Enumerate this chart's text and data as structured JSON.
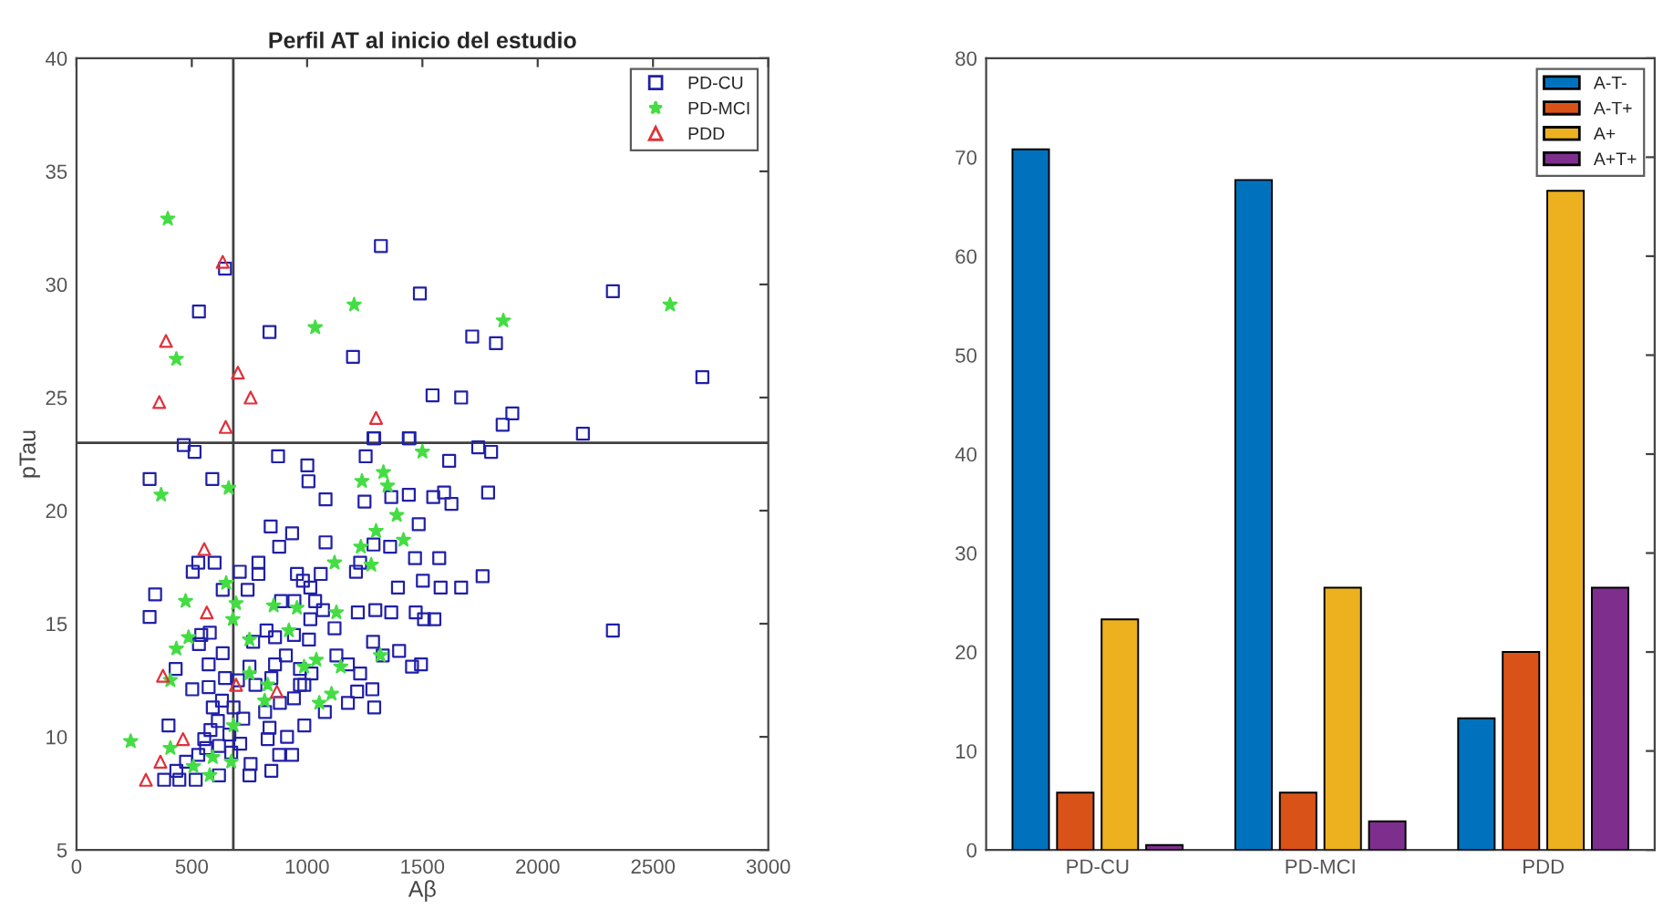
{
  "chart_data": [
    {
      "type": "scatter",
      "title": "Perfil AT al inicio del estudio",
      "xlabel": "Aβ",
      "ylabel": "pTau",
      "xlim": [
        0,
        3000
      ],
      "xticks": [
        0,
        500,
        1000,
        1500,
        2000,
        2500,
        3000
      ],
      "ylim": [
        5,
        40
      ],
      "yticks": [
        5,
        10,
        15,
        20,
        25,
        30,
        35,
        40
      ],
      "grid": false,
      "legend": "top right",
      "ref_lines": [
        {
          "axis": "x",
          "value": 680,
          "color": "#404040"
        },
        {
          "axis": "y",
          "value": 23,
          "color": "#404040"
        }
      ],
      "series": [
        {
          "name": "PD-CU",
          "color": "#2020a8",
          "marker": "square",
          "x": [
            1320,
            644,
            531,
            837,
            1489,
            1199,
            2326,
            1716,
            1819,
            2714,
            1544,
            1668,
            1890,
            1848,
            2196,
            1291,
            1441,
            465,
            512,
            589,
            317,
            874,
            1001,
            1006,
            1080,
            1254,
            1288,
            1444,
            1616,
            1798,
            1742,
            1249,
            1365,
            1441,
            1547,
            1594,
            1626,
            1785,
            1484,
            842,
            935,
            879,
            1080,
            1288,
            1360,
            1230,
            1468,
            1573,
            1761,
            1668,
            1579,
            1502,
            1394,
            1212,
            1059,
            956,
            789,
            742,
            708,
            789,
            528,
            504,
            599,
            634,
            341,
            317,
            541,
            578,
            531,
            766,
            824,
            861,
            943,
            1014,
            1069,
            1119,
            1220,
            1296,
            1365,
            1471,
            1507,
            1552,
            1399,
            1286,
            1328,
            1455,
            1494,
            1127,
            1177,
            1230,
            1283,
            1217,
            1291,
            1177,
            1077,
            988,
            913,
            935,
            879,
            845,
            829,
            837,
            755,
            750,
            618,
            517,
            446,
            380,
            433,
            475,
            528,
            562,
            581,
            399,
            430,
            502,
            573,
            573,
            634,
            644,
            700,
            750,
            776,
            845,
            861,
            908,
            969,
            988,
            943,
            882,
            818,
            723,
            681,
            631,
            591,
            613,
            663,
            710,
            671,
            618,
            554,
            969,
            1019,
            1008,
            1035,
            982,
            1014,
            945,
            887,
            2326
          ],
          "values": [
            31.7,
            30.7,
            28.8,
            27.9,
            29.6,
            26.8,
            29.7,
            27.7,
            27.4,
            25.9,
            25.1,
            25.0,
            24.3,
            23.8,
            23.4,
            23.2,
            23.2,
            22.9,
            22.6,
            21.4,
            21.4,
            22.4,
            22.0,
            21.3,
            20.5,
            22.4,
            23.2,
            23.2,
            22.2,
            22.6,
            22.8,
            20.4,
            20.6,
            20.7,
            20.6,
            20.8,
            20.3,
            20.8,
            19.4,
            19.3,
            19.0,
            18.4,
            18.6,
            18.5,
            18.4,
            17.7,
            17.9,
            17.9,
            17.1,
            16.6,
            16.6,
            16.9,
            16.6,
            17.3,
            17.2,
            17.2,
            17.2,
            16.5,
            17.3,
            17.7,
            17.7,
            17.3,
            17.7,
            16.5,
            16.3,
            15.3,
            14.5,
            14.6,
            14.1,
            14.2,
            14.7,
            14.4,
            14.5,
            15.2,
            15.6,
            14.8,
            15.5,
            15.6,
            15.5,
            15.5,
            15.2,
            15.2,
            13.8,
            14.2,
            13.6,
            13.1,
            13.2,
            13.6,
            13.2,
            12.8,
            12.1,
            12.0,
            11.3,
            11.5,
            11.1,
            10.5,
            10.0,
            9.2,
            9.2,
            8.5,
            9.9,
            10.4,
            8.8,
            8.3,
            8.3,
            8.1,
            8.1,
            8.1,
            8.5,
            8.9,
            9.2,
            9.5,
            10.3,
            10.5,
            13.0,
            12.1,
            12.2,
            13.2,
            13.7,
            12.6,
            12.5,
            13.1,
            12.3,
            12.6,
            13.2,
            13.6,
            13.0,
            12.3,
            11.7,
            11.5,
            11.1,
            10.8,
            11.3,
            11.6,
            11.3,
            10.7,
            10.1,
            9.7,
            9.3,
            9.6,
            9.9,
            12.3,
            12.8,
            14.3,
            16.0,
            16.9,
            16.6,
            16.0,
            16.0,
            14.7
          ]
        },
        {
          "name": "PD-MCI",
          "color": "#44dd44",
          "marker": "star",
          "x": [
            396,
            433,
            1035,
            1204,
            1851,
            2574,
            1500,
            367,
            660,
            1238,
            1331,
            1349,
            1299,
            1389,
            1418,
            1233,
            1119,
            1278,
            473,
            649,
            692,
            855,
            956,
            1127,
            678,
            486,
            433,
            750,
            921,
            1040,
            1146,
            1318,
            750,
            829,
            987,
            1106,
            816,
            1053,
            407,
            407,
            235,
            591,
            578,
            681,
            671,
            507
          ],
          "values": [
            32.9,
            26.7,
            28.1,
            29.1,
            28.4,
            29.1,
            22.6,
            20.7,
            21.0,
            21.3,
            21.7,
            21.1,
            19.1,
            19.8,
            18.7,
            18.4,
            17.7,
            17.6,
            16.0,
            16.8,
            15.9,
            15.8,
            15.7,
            15.5,
            15.2,
            14.4,
            13.9,
            14.3,
            14.7,
            13.4,
            13.1,
            13.6,
            12.8,
            12.3,
            13.1,
            11.9,
            11.6,
            11.5,
            12.5,
            9.5,
            9.8,
            9.1,
            8.3,
            10.5,
            8.9,
            8.7
          ]
        },
        {
          "name": "PDD",
          "color": "#e0303a",
          "marker": "triangle",
          "x": [
            634,
            388,
            359,
            700,
            755,
            647,
            1299,
            565,
            554,
            375,
            462,
            364,
            301,
            692,
            869
          ],
          "values": [
            31.0,
            27.5,
            24.8,
            26.1,
            25.0,
            23.7,
            24.1,
            15.5,
            18.3,
            12.7,
            9.9,
            8.9,
            8.1,
            12.3,
            12.0
          ]
        }
      ]
    },
    {
      "type": "bar",
      "categories": [
        "PD-CU",
        "PD-MCI",
        "PDD"
      ],
      "ylim": [
        0,
        80
      ],
      "yticks": [
        0,
        10,
        20,
        30,
        40,
        50,
        60,
        70,
        80
      ],
      "grid": false,
      "legend": "top right",
      "series": [
        {
          "name": "A-T-",
          "color": "#0072bd",
          "values": [
            70.8,
            67.7,
            13.3
          ]
        },
        {
          "name": "A-T+",
          "color": "#d95319",
          "values": [
            5.8,
            5.8,
            20.0
          ]
        },
        {
          "name": "A+",
          "color": "#edb120",
          "values": [
            23.3,
            26.5,
            66.6
          ]
        },
        {
          "name": "A+T+",
          "color": "#7e2f8e",
          "values": [
            0.5,
            2.9,
            26.5
          ]
        }
      ]
    }
  ]
}
